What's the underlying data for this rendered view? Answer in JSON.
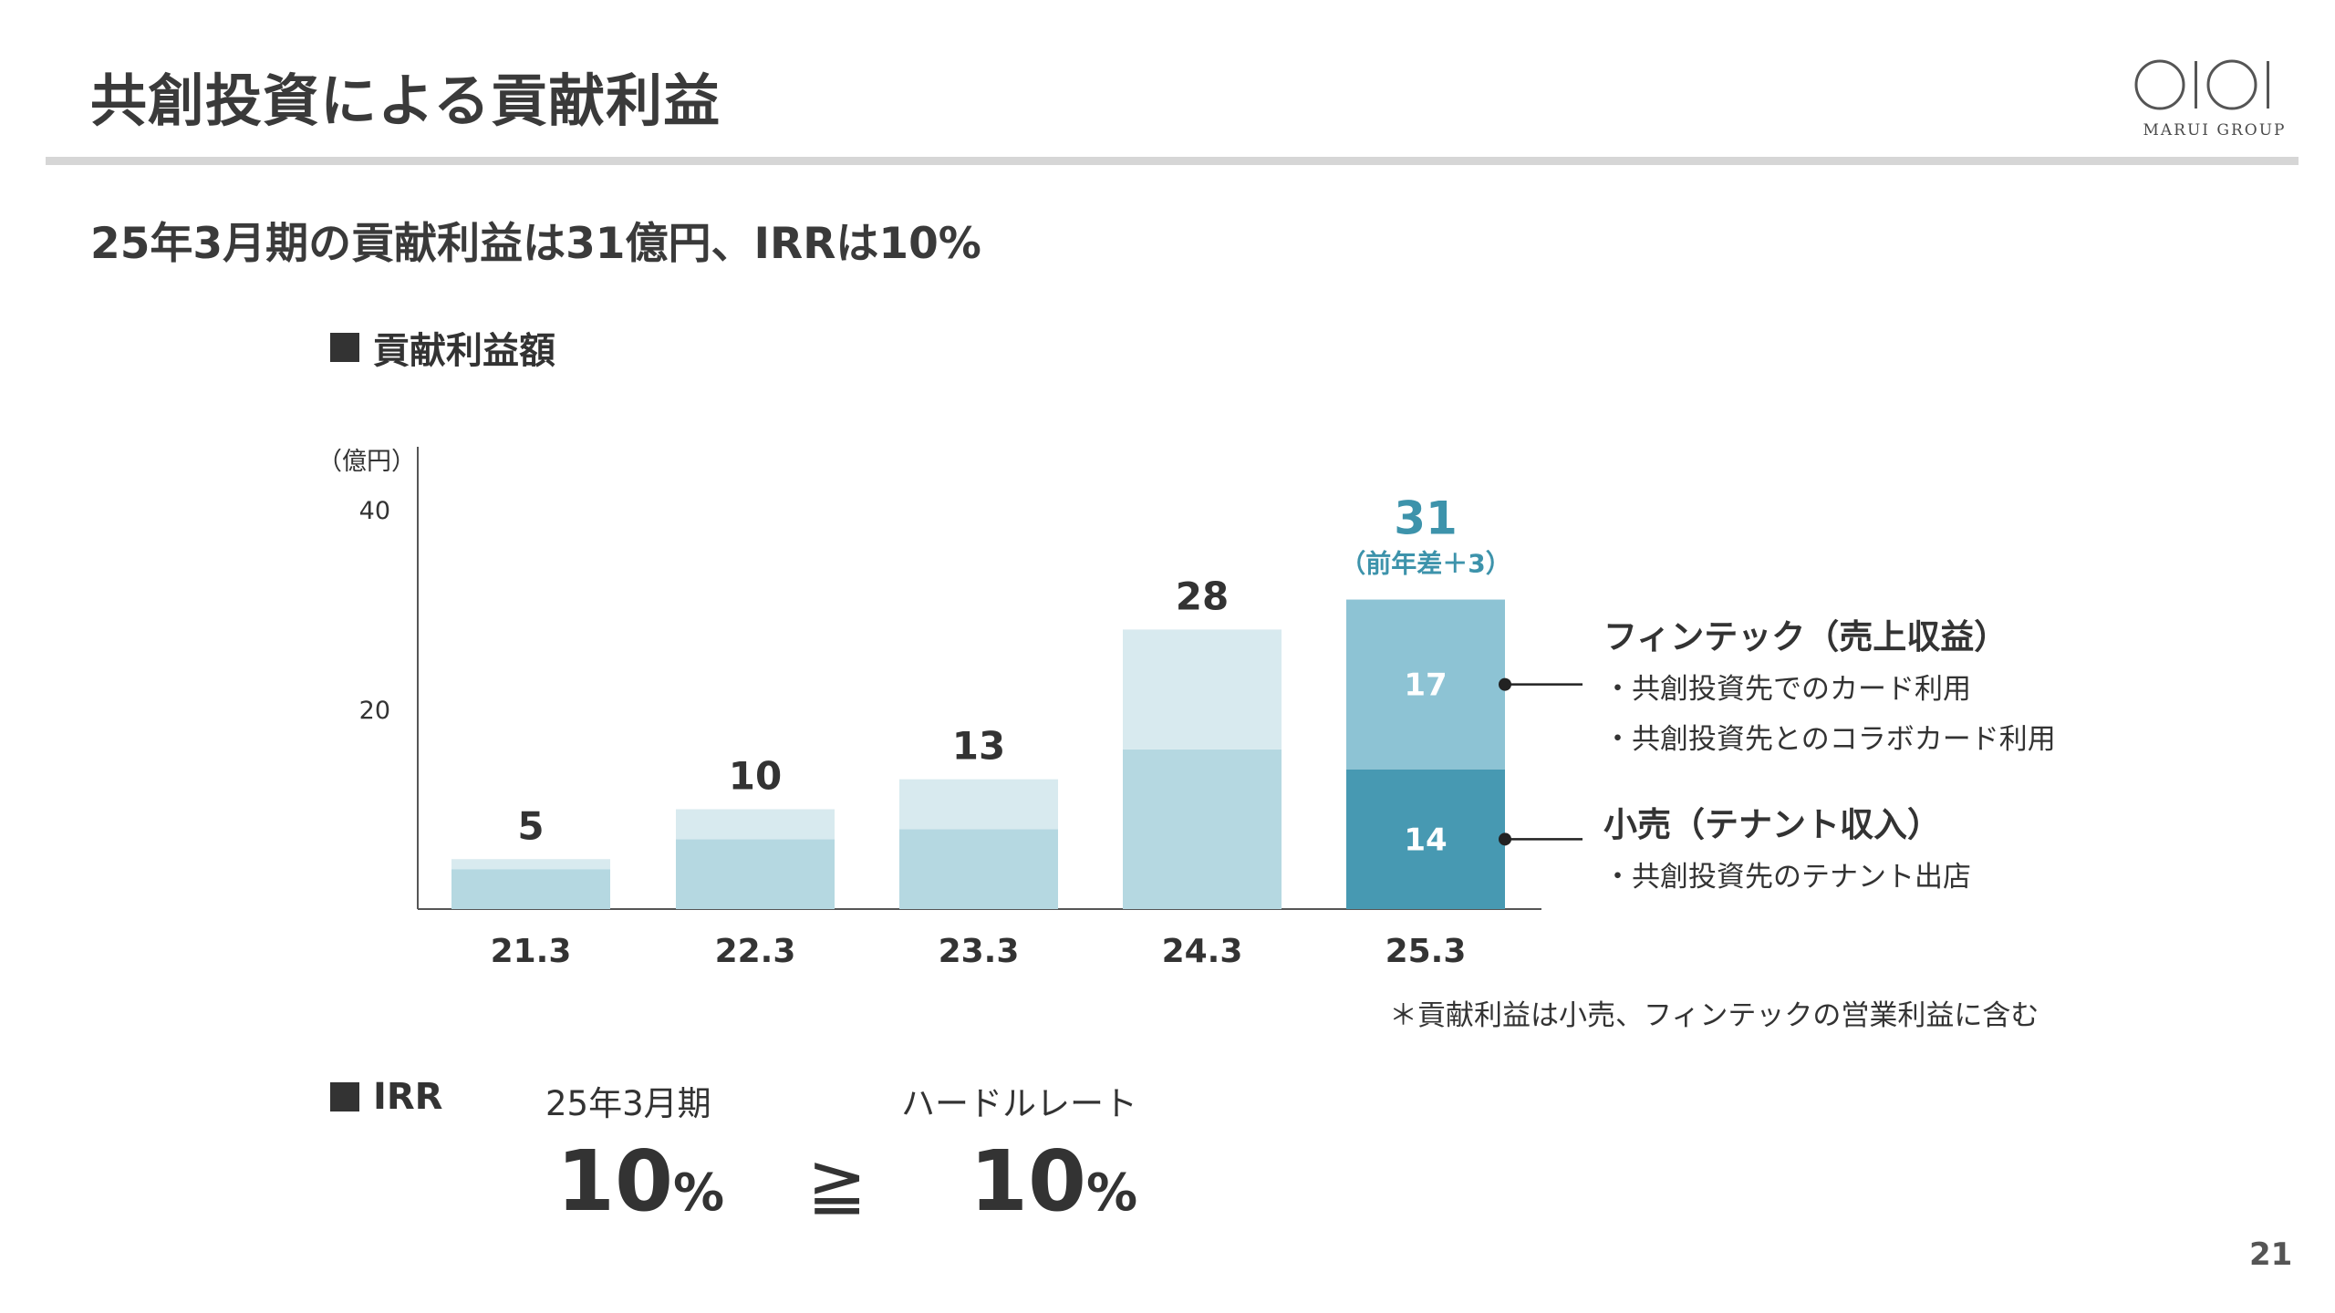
{
  "title": "共創投資による貢献利益",
  "logo": {
    "brand_text": "MARUI GROUP"
  },
  "subtitle": "25年3月期の貢献利益は31億円、IRRは10%",
  "chart_section_label": "貢献利益額",
  "chart_data": {
    "type": "bar",
    "stacked": true,
    "unit_label": "（億円）",
    "categories": [
      "21.3",
      "22.3",
      "23.3",
      "24.3",
      "25.3"
    ],
    "totals": [
      5,
      10,
      13,
      28,
      31
    ],
    "series": [
      {
        "name": "小売（テナント収入）",
        "values": [
          4,
          7,
          8,
          16,
          14
        ],
        "color": "#b5d8e1",
        "highlight_color": "#4799b2"
      },
      {
        "name": "フィンテック（売上収益）",
        "values": [
          1,
          3,
          5,
          12,
          17
        ],
        "color": "#d8eaef",
        "highlight_color": "#8dc3d4"
      }
    ],
    "highlight_index": 4,
    "highlight_segment_labels": [
      "14",
      "17"
    ],
    "highlight_total_label": "31",
    "highlight_note": "（前年差＋3）",
    "y_ticks": [
      "20",
      "40"
    ],
    "ylim": [
      0,
      46
    ],
    "colors": {
      "text": "#333333",
      "accent": "#3d93ab",
      "axis": "#555555"
    }
  },
  "callouts": {
    "fintech": {
      "title": "フィンテック（売上収益）",
      "bullets": [
        "・共創投資先でのカード利用",
        "・共創投資先とのコラボカード利用"
      ]
    },
    "retail": {
      "title": "小売（テナント収入）",
      "bullets": [
        "・共創投資先のテナント出店"
      ]
    }
  },
  "footnote": "＊貢献利益は小売、フィンテックの営業利益に含む",
  "irr": {
    "label": "IRR",
    "current_label": "25年3月期",
    "current_value": "10",
    "hurdle_label": "ハードルレート",
    "hurdle_value": "10",
    "percent_symbol": "%",
    "comparator": "≧"
  },
  "page_number": "21"
}
